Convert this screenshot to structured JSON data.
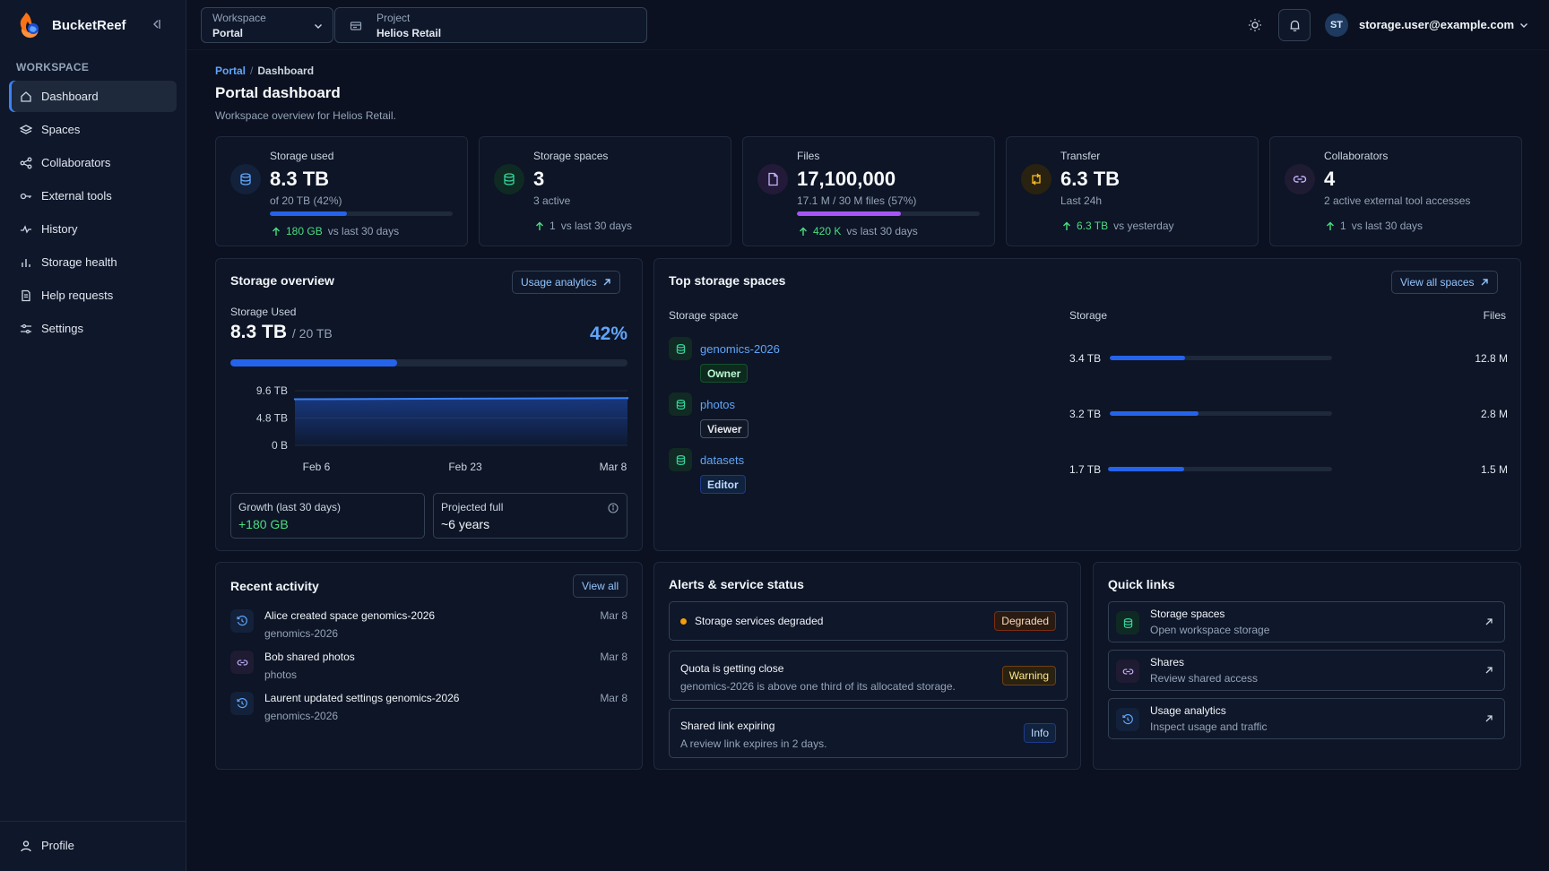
{
  "brand": {
    "name": "BucketReef"
  },
  "sidebar": {
    "section_label": "WORKSPACE",
    "items": [
      {
        "label": "Dashboard",
        "icon": "home-icon"
      },
      {
        "label": "Spaces",
        "icon": "layers-icon"
      },
      {
        "label": "Collaborators",
        "icon": "share-icon"
      },
      {
        "label": "External tools",
        "icon": "key-icon"
      },
      {
        "label": "History",
        "icon": "activity-icon"
      },
      {
        "label": "Storage health",
        "icon": "bar-chart-icon"
      },
      {
        "label": "Help requests",
        "icon": "document-icon"
      },
      {
        "label": "Settings",
        "icon": "sliders-icon"
      }
    ],
    "profile_label": "Profile"
  },
  "header": {
    "workspace": {
      "label": "Workspace",
      "value": "Portal"
    },
    "project": {
      "label": "Project",
      "value": "Helios Retail"
    },
    "user": {
      "initials": "ST",
      "email": "storage.user@example.com"
    }
  },
  "page": {
    "breadcrumb": {
      "root": "Portal",
      "separator": "/",
      "current": "Dashboard"
    },
    "title": "Portal dashboard",
    "subtitle": "Workspace overview for Helios Retail."
  },
  "stats": [
    {
      "title": "Storage used",
      "value": "8.3 TB",
      "sub": "of 20 TB (42%)",
      "progress": 0.42,
      "delta_value": "180 GB",
      "delta_text": "vs last 30 days",
      "icon": "database-icon",
      "color": "#60a5fa"
    },
    {
      "title": "Storage spaces",
      "value": "3",
      "sub": "3 active",
      "delta_value": "1",
      "delta_text": "vs last 30 days",
      "icon": "database-stack-icon",
      "color": "#34d399"
    },
    {
      "title": "Files",
      "value": "17,100,000",
      "sub": "17.1 M / 30 M files (57%)",
      "progress": 0.57,
      "delta_value": "420 K",
      "delta_text": "vs last 30 days",
      "icon": "file-icon",
      "color": "#a855f7"
    },
    {
      "title": "Transfer",
      "value": "6.3 TB",
      "sub": "Last 24h",
      "delta_value": "6.3 TB",
      "delta_text": "vs yesterday",
      "icon": "transfer-icon",
      "color": "#fbbf24"
    },
    {
      "title": "Collaborators",
      "value": "4",
      "sub": "2 active external tool accesses",
      "delta_value": "1",
      "delta_text": "vs last 30 days",
      "icon": "link-icon",
      "color": "#c4b5fd"
    }
  ],
  "overview": {
    "title": "Storage overview",
    "analytics_button": "Usage analytics",
    "used_label": "Storage Used",
    "used_value": "8.3 TB",
    "total_text": "/ 20 TB",
    "percent": "42%",
    "progress": 0.42,
    "growth_label": "Growth (last 30 days)",
    "growth_value": "+180 GB",
    "projected_label": "Projected full",
    "projected_value": "~6 years"
  },
  "chart_data": {
    "type": "area",
    "y_ticks": [
      "9.6 TB",
      "4.8 TB",
      "0 B"
    ],
    "x_ticks": [
      "Feb 6",
      "Feb 23",
      "Mar 8"
    ],
    "ylim": [
      0,
      9.6
    ],
    "y_unit": "TB",
    "x": [
      "Feb 6",
      "Feb 23",
      "Mar 8"
    ],
    "values": [
      8.1,
      8.2,
      8.3
    ],
    "color": "#2563eb"
  },
  "top_spaces": {
    "title": "Top storage spaces",
    "view_all": "View all spaces",
    "columns": {
      "space": "Storage space",
      "storage": "Storage",
      "files": "Files"
    },
    "rows": [
      {
        "name": "genomics-2026",
        "role": "Owner",
        "size": "3.4 TB",
        "fraction": 0.34,
        "files": "12.8 M"
      },
      {
        "name": "photos",
        "role": "Viewer",
        "size": "3.2 TB",
        "fraction": 0.4,
        "files": "2.8 M"
      },
      {
        "name": "datasets",
        "role": "Editor",
        "size": "1.7 TB",
        "fraction": 0.34,
        "files": "1.5 M"
      }
    ]
  },
  "activity": {
    "title": "Recent activity",
    "view_all": "View all",
    "items": [
      {
        "text": "Alice created space genomics-2026",
        "sub": "genomics-2026",
        "date": "Mar 8",
        "icon": "clock-icon"
      },
      {
        "text": "Bob shared photos",
        "sub": "photos",
        "date": "Mar 8",
        "icon": "link-icon"
      },
      {
        "text": "Laurent updated settings genomics-2026",
        "sub": "genomics-2026",
        "date": "Mar 8",
        "icon": "clock-icon"
      }
    ]
  },
  "alerts": {
    "title": "Alerts & service status",
    "items": [
      {
        "title": "Storage services degraded",
        "badge": "Degraded"
      },
      {
        "title": "Quota is getting close",
        "sub": "genomics-2026 is above one third of its allocated storage.",
        "badge": "Warning"
      },
      {
        "title": "Shared link expiring",
        "sub": "A review link expires in 2 days.",
        "badge": "Info"
      }
    ]
  },
  "quick_links": {
    "title": "Quick links",
    "items": [
      {
        "title": "Storage spaces",
        "sub": "Open workspace storage",
        "icon": "database-stack-icon"
      },
      {
        "title": "Shares",
        "sub": "Review shared access",
        "icon": "link-icon"
      },
      {
        "title": "Usage analytics",
        "sub": "Inspect usage and traffic",
        "icon": "clock-icon"
      }
    ]
  }
}
